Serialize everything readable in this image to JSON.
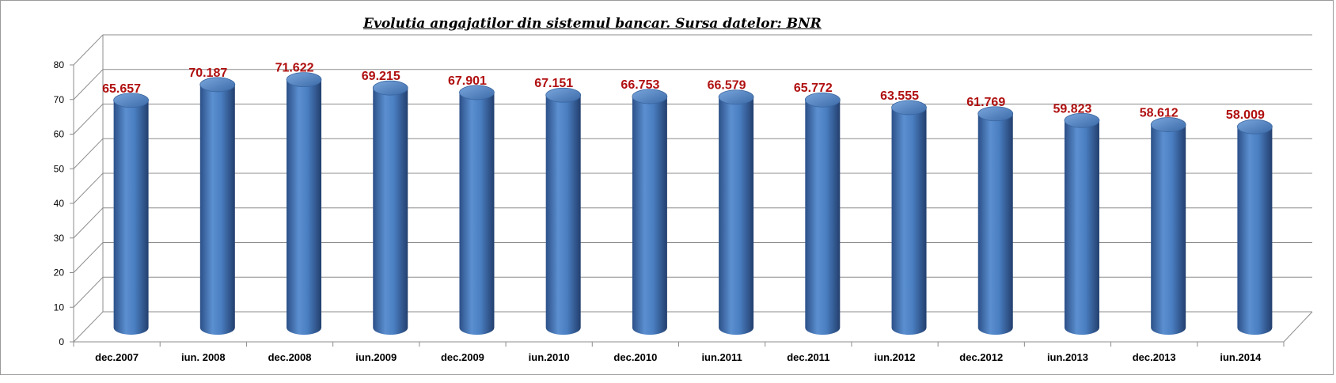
{
  "chart_data": {
    "type": "bar",
    "title": "Evolutia angajatilor din sistemul bancar. Sursa datelor: BNR",
    "categories": [
      "dec.2007",
      "iun. 2008",
      "dec.2008",
      "iun.2009",
      "dec.2009",
      "iun.2010",
      "dec.2010",
      "iun.2011",
      "dec.2011",
      "iun.2012",
      "dec.2012",
      "iun.2013",
      "dec.2013",
      "iun.2014"
    ],
    "values": [
      65.657,
      70.187,
      71.622,
      69.215,
      67.901,
      67.151,
      66.753,
      66.579,
      65.772,
      63.555,
      61.769,
      59.823,
      58.612,
      58.009
    ],
    "value_labels": [
      "65.657",
      "70.187",
      "71.622",
      "69.215",
      "67.901",
      "67.151",
      "66.753",
      "66.579",
      "65.772",
      "63.555",
      "61.769",
      "59.823",
      "58.612",
      "58.009"
    ],
    "y_ticks": [
      "0",
      "10",
      "20",
      "30",
      "40",
      "50",
      "60",
      "70",
      "80"
    ],
    "ylim": [
      0,
      80
    ],
    "grid": true,
    "legend": "none",
    "bar_color": "#4f81bd",
    "label_color": "#b01010"
  }
}
